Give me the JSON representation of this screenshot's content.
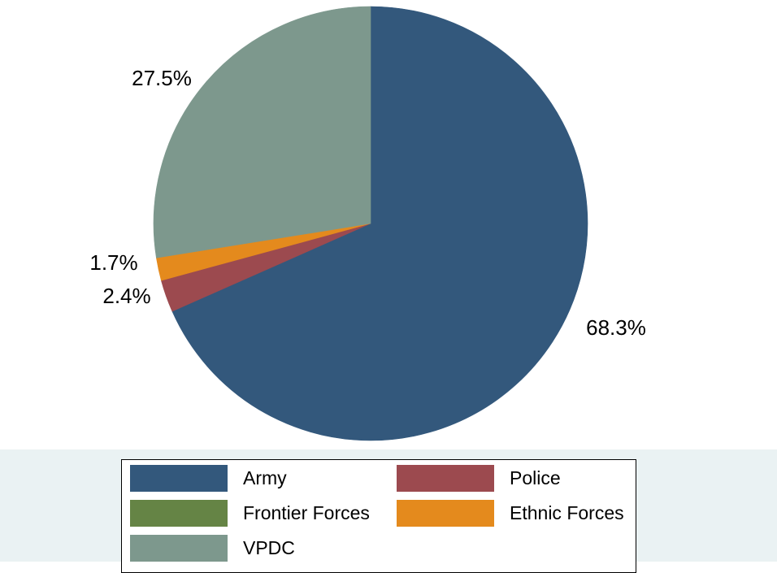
{
  "chart_data": {
    "type": "pie",
    "start_angle_deg": 90,
    "direction": "clockwise",
    "slices": [
      {
        "category": "Army",
        "value": 68.3,
        "label": "68.3%",
        "color": "#33587c"
      },
      {
        "category": "Police",
        "value": 2.4,
        "label": "2.4%",
        "color": "#9c4a4f"
      },
      {
        "category": "Frontier Forces",
        "value": 0,
        "label": "",
        "color": "#658445"
      },
      {
        "category": "Ethnic Forces",
        "value": 1.7,
        "label": "1.7%",
        "color": "#e48a1d"
      },
      {
        "category": "VPDC",
        "value": 27.5,
        "label": "27.5%",
        "color": "#7d988d"
      }
    ],
    "legend": {
      "placement": "bottom",
      "columns": 2,
      "entries": [
        "Army",
        "Police",
        "Frontier Forces",
        "Ethnic Forces",
        "VPDC"
      ]
    },
    "colors": {
      "legend_background": "#eaf2f3",
      "plot_background": "#ffffff"
    }
  }
}
